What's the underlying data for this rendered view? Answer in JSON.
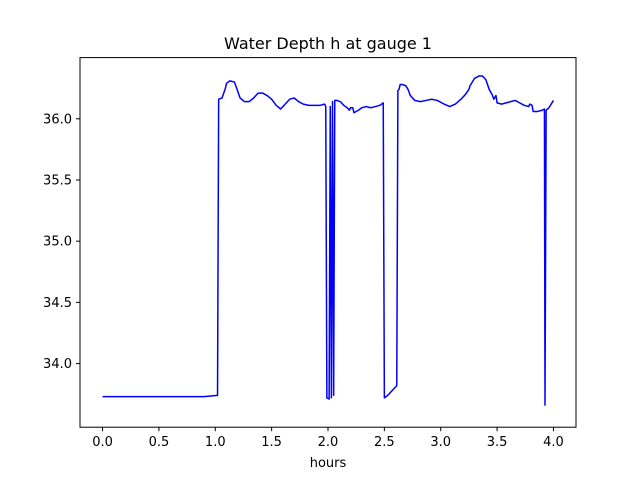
{
  "chart_data": {
    "type": "line",
    "title": "Water Depth h at gauge 1",
    "xlabel": "hours",
    "ylabel": "",
    "xlim": [
      -0.2,
      4.2
    ],
    "ylim": [
      33.48,
      36.5
    ],
    "xticks": [
      0.0,
      0.5,
      1.0,
      1.5,
      2.0,
      2.5,
      3.0,
      3.5,
      4.0
    ],
    "xtick_labels": [
      "0.0",
      "0.5",
      "1.0",
      "1.5",
      "2.0",
      "2.5",
      "3.0",
      "3.5",
      "4.0"
    ],
    "yticks": [
      34.0,
      34.5,
      35.0,
      35.5,
      36.0
    ],
    "ytick_labels": [
      "34.0",
      "34.5",
      "35.0",
      "35.5",
      "36.0"
    ],
    "grid": false,
    "series": [
      {
        "color": "#0000ff",
        "points": [
          [
            0.0,
            33.73
          ],
          [
            0.5,
            33.73
          ],
          [
            0.9,
            33.73
          ],
          [
            1.02,
            33.74
          ],
          [
            1.03,
            36.16
          ],
          [
            1.06,
            36.17
          ],
          [
            1.09,
            36.25
          ],
          [
            1.1,
            36.29
          ],
          [
            1.13,
            36.31
          ],
          [
            1.17,
            36.3
          ],
          [
            1.19,
            36.25
          ],
          [
            1.22,
            36.17
          ],
          [
            1.26,
            36.14
          ],
          [
            1.3,
            36.14
          ],
          [
            1.34,
            36.17
          ],
          [
            1.38,
            36.21
          ],
          [
            1.42,
            36.21
          ],
          [
            1.46,
            36.19
          ],
          [
            1.5,
            36.16
          ],
          [
            1.54,
            36.11
          ],
          [
            1.58,
            36.08
          ],
          [
            1.62,
            36.12
          ],
          [
            1.66,
            36.16
          ],
          [
            1.7,
            36.17
          ],
          [
            1.74,
            36.14
          ],
          [
            1.78,
            36.12
          ],
          [
            1.83,
            36.11
          ],
          [
            1.88,
            36.11
          ],
          [
            1.93,
            36.11
          ],
          [
            1.97,
            36.12
          ],
          [
            1.98,
            36.1
          ],
          [
            1.99,
            33.72
          ],
          [
            2.01,
            33.71
          ],
          [
            2.02,
            36.1
          ],
          [
            2.03,
            33.72
          ],
          [
            2.04,
            36.14
          ],
          [
            2.05,
            33.74
          ],
          [
            2.06,
            36.15
          ],
          [
            2.08,
            36.15
          ],
          [
            2.11,
            36.14
          ],
          [
            2.14,
            36.11
          ],
          [
            2.17,
            36.09
          ],
          [
            2.19,
            36.07
          ],
          [
            2.2,
            36.09
          ],
          [
            2.22,
            36.09
          ],
          [
            2.23,
            36.05
          ],
          [
            2.27,
            36.07
          ],
          [
            2.3,
            36.09
          ],
          [
            2.34,
            36.1
          ],
          [
            2.38,
            36.09
          ],
          [
            2.42,
            36.1
          ],
          [
            2.46,
            36.11
          ],
          [
            2.49,
            36.13
          ],
          [
            2.5,
            33.72
          ],
          [
            2.53,
            33.74
          ],
          [
            2.57,
            33.78
          ],
          [
            2.61,
            33.82
          ],
          [
            2.62,
            36.23
          ],
          [
            2.63,
            36.24
          ],
          [
            2.64,
            36.28
          ],
          [
            2.66,
            36.28
          ],
          [
            2.69,
            36.27
          ],
          [
            2.71,
            36.24
          ],
          [
            2.73,
            36.19
          ],
          [
            2.77,
            36.15
          ],
          [
            2.82,
            36.14
          ],
          [
            2.87,
            36.15
          ],
          [
            2.92,
            36.16
          ],
          [
            2.97,
            36.15
          ],
          [
            3.03,
            36.12
          ],
          [
            3.08,
            36.1
          ],
          [
            3.13,
            36.12
          ],
          [
            3.18,
            36.16
          ],
          [
            3.22,
            36.2
          ],
          [
            3.25,
            36.24
          ],
          [
            3.26,
            36.27
          ],
          [
            3.3,
            36.33
          ],
          [
            3.34,
            36.35
          ],
          [
            3.37,
            36.35
          ],
          [
            3.4,
            36.32
          ],
          [
            3.43,
            36.24
          ],
          [
            3.46,
            36.19
          ],
          [
            3.47,
            36.16
          ],
          [
            3.49,
            36.19
          ],
          [
            3.5,
            36.13
          ],
          [
            3.54,
            36.12
          ],
          [
            3.58,
            36.13
          ],
          [
            3.62,
            36.14
          ],
          [
            3.66,
            36.15
          ],
          [
            3.7,
            36.13
          ],
          [
            3.74,
            36.11
          ],
          [
            3.78,
            36.1
          ],
          [
            3.79,
            36.12
          ],
          [
            3.81,
            36.11
          ],
          [
            3.82,
            36.06
          ],
          [
            3.86,
            36.06
          ],
          [
            3.9,
            36.07
          ],
          [
            3.92,
            36.08
          ],
          [
            3.925,
            33.66
          ],
          [
            3.935,
            36.07
          ],
          [
            3.96,
            36.09
          ],
          [
            4.0,
            36.15
          ]
        ]
      }
    ]
  }
}
